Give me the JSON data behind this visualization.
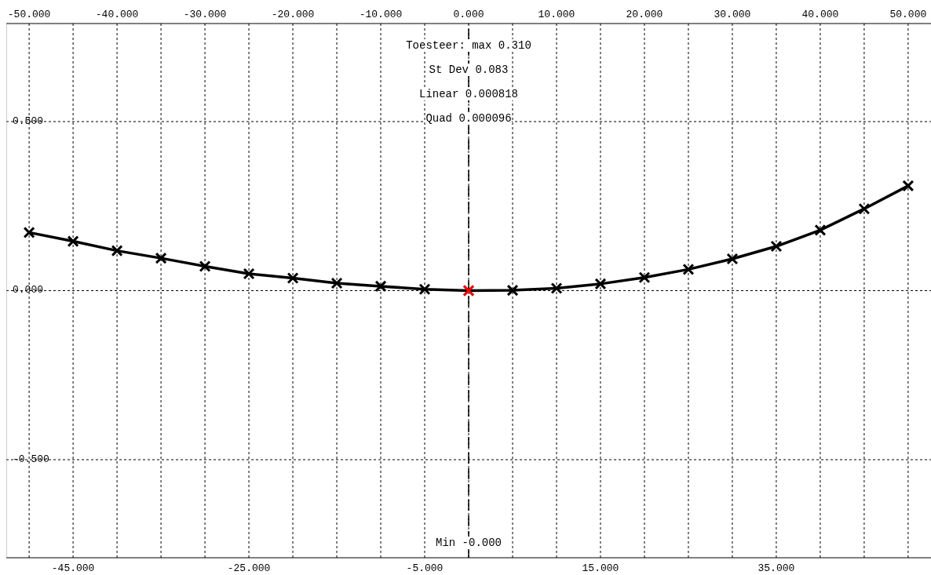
{
  "chart_data": {
    "type": "line",
    "xlim": [
      -52.6,
      52.6
    ],
    "xticks": [
      {
        "value": -50,
        "label": null
      },
      {
        "value": -45,
        "label": "-45.000"
      },
      {
        "value": -40,
        "label": null
      },
      {
        "value": -35,
        "label": null
      },
      {
        "value": -30,
        "label": null
      },
      {
        "value": -25,
        "label": "-25.000"
      },
      {
        "value": -20,
        "label": null
      },
      {
        "value": -15,
        "label": null
      },
      {
        "value": -10,
        "label": null
      },
      {
        "value": -5,
        "label": "-5.000"
      },
      {
        "value": 0,
        "label": null
      },
      {
        "value": 5,
        "label": null
      },
      {
        "value": 10,
        "label": null
      },
      {
        "value": 15,
        "label": "15.000"
      },
      {
        "value": 20,
        "label": null
      },
      {
        "value": 25,
        "label": null
      },
      {
        "value": 30,
        "label": null
      },
      {
        "value": 35,
        "label": "35.000"
      },
      {
        "value": 40,
        "label": null
      },
      {
        "value": 45,
        "label": null
      },
      {
        "value": 50,
        "label": null
      }
    ],
    "x2lim": [
      -52.6,
      52.6
    ],
    "x2ticks": [
      {
        "value": -50,
        "label": "-50.000"
      },
      {
        "value": -40,
        "label": "-40.000"
      },
      {
        "value": -30,
        "label": "-30.000"
      },
      {
        "value": -20,
        "label": "-20.000"
      },
      {
        "value": -10,
        "label": "-10.000"
      },
      {
        "value": 0,
        "label": "0.000"
      },
      {
        "value": 10,
        "label": "10.000"
      },
      {
        "value": 20,
        "label": "20.000"
      },
      {
        "value": 30,
        "label": "30.000"
      },
      {
        "value": 40,
        "label": "40.000"
      },
      {
        "value": 50,
        "label": "50.000"
      }
    ],
    "ylim": [
      -0.79,
      0.79
    ],
    "yticks": [
      {
        "value": -0.5,
        "label": "-0.500"
      },
      {
        "value": 0,
        "label": "0.000"
      },
      {
        "value": 0.5,
        "label": "0.500"
      }
    ],
    "grid": true,
    "marker": "cross",
    "line_style": "solid",
    "series": [
      {
        "color": "#000000",
        "x": [
          -50,
          -45,
          -40,
          -35,
          -30,
          -25,
          -20,
          -15,
          -10,
          -5,
          0,
          5,
          10,
          15,
          20,
          25,
          30,
          35,
          40,
          45,
          50
        ],
        "values": [
          0.172,
          0.146,
          0.118,
          0.096,
          0.072,
          0.05,
          0.037,
          0.022,
          0.013,
          0.004,
          0,
          0.001,
          0.007,
          0.02,
          0.039,
          0.063,
          0.094,
          0.131,
          0.179,
          0.242,
          0.31
        ]
      },
      {
        "type": "scatter",
        "color": "#ff0000",
        "x": [
          0
        ],
        "values": [
          0
        ]
      }
    ],
    "ref_lines": [
      {
        "axis": "x",
        "value": 0,
        "color": "#000000",
        "line_style": "dashed"
      }
    ],
    "annotations": [
      "Toesteer: max 0.310",
      "St Dev 0.083",
      "Linear 0.000818",
      "Quad 0.000096",
      "Min -0.000"
    ]
  }
}
